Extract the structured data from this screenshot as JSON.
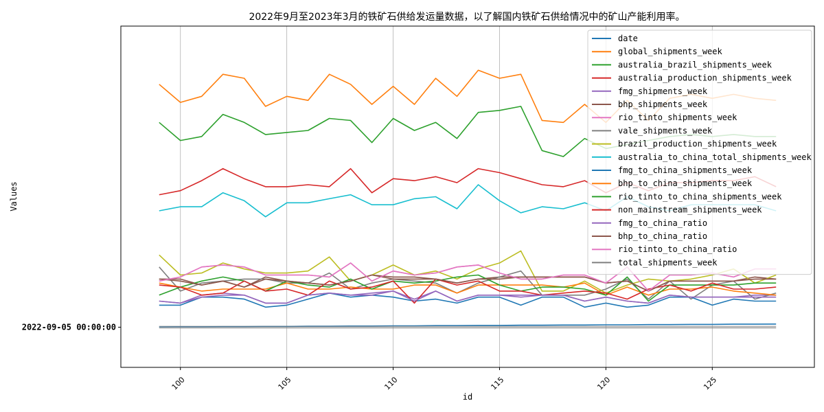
{
  "chart_data": {
    "type": "line",
    "title": "2022年9月至2023年3月的铁矿石供给发运量数据，以了解国内铁矿石供给情况中的矿山产能利用率。",
    "xlabel": "id",
    "ylabel": "Values",
    "xlim": [
      97.2,
      129.8
    ],
    "ylim": [
      -2.0,
      15.0
    ],
    "x_ticks": [
      100,
      105,
      110,
      115,
      120,
      125
    ],
    "y_ticks": [
      {
        "value": 0,
        "label": "2022-09-05 00:00:00"
      }
    ],
    "grid": "x",
    "legend_position": "top-right",
    "x": [
      99,
      100,
      101,
      102,
      103,
      104,
      105,
      106,
      107,
      108,
      109,
      110,
      111,
      112,
      113,
      114,
      115,
      116,
      117,
      118,
      119,
      120,
      121,
      122,
      123,
      124,
      125,
      126,
      127,
      128
    ],
    "series": [
      {
        "name": "date",
        "color": "#1f77b4",
        "values": [
          0.01,
          0.02,
          0.02,
          0.03,
          0.03,
          0.04,
          0.04,
          0.05,
          0.05,
          0.06,
          0.06,
          0.07,
          0.07,
          0.08,
          0.08,
          0.09,
          0.09,
          0.1,
          0.1,
          0.11,
          0.11,
          0.12,
          0.12,
          0.13,
          0.13,
          0.14,
          0.14,
          0.15,
          0.15,
          0.16
        ]
      },
      {
        "name": "global_shipments_week",
        "color": "#ff7f0e",
        "values": [
          12.1,
          11.2,
          11.5,
          12.6,
          12.4,
          11.0,
          11.5,
          11.3,
          12.6,
          12.1,
          11.1,
          12.0,
          11.1,
          12.4,
          11.5,
          12.8,
          12.4,
          12.6,
          10.3,
          10.2,
          11.1,
          10.2,
          11.3,
          10.3,
          11.4,
          11.6,
          11.4,
          11.6,
          11.4,
          11.3
        ]
      },
      {
        "name": "australia_brazil_shipments_week",
        "color": "#2ca02c",
        "values": [
          10.2,
          9.3,
          9.5,
          10.6,
          10.2,
          9.6,
          9.7,
          9.8,
          10.4,
          10.3,
          9.2,
          10.4,
          9.8,
          10.2,
          9.4,
          10.7,
          10.8,
          11.0,
          8.8,
          8.5,
          9.4,
          8.9,
          9.1,
          9.3,
          9.5,
          9.6,
          9.5,
          9.6,
          9.5,
          9.5
        ]
      },
      {
        "name": "australia_production_shipments_week",
        "color": "#d62728",
        "values": [
          6.6,
          6.8,
          7.3,
          7.9,
          7.4,
          7.0,
          7.0,
          7.1,
          7.0,
          7.9,
          6.7,
          7.4,
          7.3,
          7.5,
          7.2,
          7.9,
          7.7,
          7.4,
          7.1,
          7.0,
          7.3,
          6.7,
          7.2,
          6.8,
          7.2,
          7.2,
          7.3,
          7.3,
          7.5,
          7.0
        ]
      },
      {
        "name": "fmg_shipments_week",
        "color": "#9467bd",
        "values": [
          1.3,
          1.2,
          1.6,
          1.7,
          1.6,
          1.2,
          1.2,
          1.6,
          1.7,
          1.6,
          1.7,
          1.8,
          1.4,
          1.8,
          1.3,
          1.6,
          1.6,
          1.6,
          1.6,
          1.6,
          1.3,
          1.5,
          1.3,
          1.2,
          1.6,
          1.5,
          1.5,
          1.5,
          1.6,
          1.6
        ]
      },
      {
        "name": "bhp_shipments_week",
        "color": "#8c564b",
        "values": [
          2.4,
          2.4,
          2.1,
          2.3,
          2.0,
          2.5,
          2.3,
          2.2,
          2.1,
          2.3,
          2.6,
          2.5,
          2.5,
          2.4,
          2.2,
          2.4,
          2.5,
          2.5,
          2.5,
          2.5,
          2.5,
          2.2,
          2.3,
          1.8,
          2.3,
          2.3,
          2.3,
          2.3,
          2.5,
          2.4
        ]
      },
      {
        "name": "rio_tinto_shipments_week",
        "color": "#e377c2",
        "values": [
          2.3,
          2.5,
          3.0,
          3.1,
          3.0,
          2.6,
          2.6,
          2.6,
          2.5,
          3.2,
          2.3,
          2.8,
          2.6,
          2.7,
          3.0,
          3.1,
          2.7,
          2.4,
          2.4,
          2.6,
          2.6,
          2.2,
          3.0,
          1.8,
          2.6,
          2.6,
          2.7,
          2.5,
          2.9,
          2.9
        ]
      },
      {
        "name": "vale_shipments_week",
        "color": "#7f7f7f",
        "values": [
          3.0,
          1.8,
          2.2,
          2.3,
          2.4,
          2.4,
          2.2,
          2.2,
          2.7,
          1.9,
          2.2,
          2.4,
          2.3,
          2.2,
          1.7,
          2.2,
          2.5,
          2.8,
          1.6,
          1.6,
          1.6,
          1.9,
          2.4,
          1.4,
          2.3,
          1.4,
          2.1,
          2.3,
          1.4,
          1.7
        ]
      },
      {
        "name": "brazil_production_shipments_week",
        "color": "#bcbd22",
        "values": [
          3.6,
          2.6,
          2.7,
          3.2,
          2.9,
          2.7,
          2.7,
          2.8,
          3.5,
          2.3,
          2.6,
          3.1,
          2.6,
          2.8,
          2.4,
          2.9,
          3.2,
          3.8,
          1.8,
          1.8,
          2.3,
          1.7,
          2.1,
          2.4,
          2.3,
          2.4,
          2.6,
          2.9,
          2.2,
          2.6
        ]
      },
      {
        "name": "australia_to_china_total_shipments_week",
        "color": "#17becf",
        "values": [
          5.8,
          6.0,
          6.0,
          6.7,
          6.3,
          5.5,
          6.2,
          6.2,
          6.4,
          6.6,
          6.1,
          6.1,
          6.4,
          6.5,
          5.9,
          7.1,
          6.3,
          5.7,
          6.0,
          5.9,
          6.2,
          5.8,
          6.5,
          6.0,
          5.8,
          6.1,
          6.1,
          6.1,
          6.1,
          5.8
        ]
      },
      {
        "name": "fmg_to_china_shipments_week",
        "color": "#1f77b4",
        "values": [
          1.1,
          1.1,
          1.5,
          1.5,
          1.4,
          1.0,
          1.1,
          1.4,
          1.7,
          1.5,
          1.6,
          1.5,
          1.3,
          1.4,
          1.2,
          1.5,
          1.5,
          1.1,
          1.5,
          1.5,
          1.0,
          1.2,
          1.0,
          1.1,
          1.5,
          1.5,
          1.1,
          1.4,
          1.3,
          1.3
        ]
      },
      {
        "name": "bhp_to_china_shipments_week",
        "color": "#ff7f0e",
        "values": [
          2.2,
          2.0,
          1.8,
          1.9,
          1.9,
          1.9,
          2.2,
          1.9,
          1.9,
          2.0,
          1.9,
          1.9,
          2.1,
          2.1,
          1.7,
          2.1,
          2.1,
          2.1,
          2.1,
          2.0,
          2.2,
          1.6,
          2.0,
          1.6,
          1.9,
          1.9,
          2.0,
          1.8,
          1.7,
          1.6
        ]
      },
      {
        "name": "rio_tinto_to_china_shipments_week",
        "color": "#2ca02c",
        "values": [
          1.6,
          2.0,
          2.3,
          2.5,
          2.3,
          1.8,
          2.3,
          2.1,
          2.0,
          2.4,
          1.9,
          2.3,
          2.2,
          2.3,
          2.5,
          2.6,
          2.1,
          1.8,
          2.0,
          2.0,
          1.9,
          1.6,
          2.5,
          1.3,
          2.1,
          2.1,
          2.1,
          2.1,
          2.2,
          2.2
        ]
      },
      {
        "name": "non_mainstream_shipments_week",
        "color": "#d62728",
        "values": [
          2.1,
          2.0,
          1.6,
          1.7,
          2.3,
          1.8,
          1.9,
          1.6,
          2.3,
          1.9,
          2.0,
          2.3,
          1.2,
          2.4,
          2.1,
          2.3,
          1.8,
          1.8,
          1.6,
          1.7,
          1.8,
          1.7,
          1.4,
          1.9,
          2.1,
          1.8,
          2.2,
          1.9,
          1.9,
          2.0
        ]
      },
      {
        "name": "fmg_to_china_ratio",
        "color": "#9467bd",
        "values": [
          1.3,
          1.2,
          1.5,
          1.6,
          1.6,
          1.2,
          1.2,
          1.6,
          1.7,
          1.6,
          1.6,
          1.8,
          1.3,
          1.8,
          1.3,
          1.6,
          1.6,
          1.5,
          1.6,
          1.6,
          1.3,
          1.5,
          1.3,
          1.2,
          1.6,
          1.5,
          1.5,
          1.5,
          1.5,
          1.5
        ]
      },
      {
        "name": "bhp_to_china_ratio",
        "color": "#8c564b",
        "values": [
          2.4,
          2.3,
          2.1,
          2.3,
          2.0,
          2.4,
          2.3,
          2.2,
          2.1,
          2.3,
          2.6,
          2.4,
          2.4,
          2.4,
          2.2,
          2.4,
          2.4,
          2.5,
          2.5,
          2.5,
          2.5,
          2.2,
          2.3,
          1.8,
          2.3,
          2.3,
          2.3,
          2.3,
          2.4,
          2.4
        ]
      },
      {
        "name": "rio_tinto_to_china_ratio",
        "color": "#e377c2",
        "values": [
          2.3,
          2.5,
          3.0,
          3.1,
          3.0,
          2.6,
          2.6,
          2.6,
          2.5,
          3.2,
          2.3,
          2.8,
          2.6,
          2.7,
          3.0,
          3.1,
          2.7,
          2.4,
          2.4,
          2.6,
          2.6,
          2.2,
          3.0,
          1.8,
          2.6,
          2.6,
          2.7,
          2.5,
          2.9,
          2.9
        ]
      },
      {
        "name": "total_shipments_week",
        "color": "#7f7f7f",
        "values": [
          0.0,
          0.0,
          0.0,
          0.0,
          0.0,
          0.0,
          0.0,
          0.0,
          0.0,
          0.0,
          0.0,
          0.0,
          0.0,
          0.0,
          0.0,
          0.0,
          0.0,
          0.0,
          0.0,
          0.0,
          0.0,
          0.0,
          0.0,
          0.0,
          0.0,
          0.0,
          0.0,
          0.0,
          0.0,
          0.0
        ]
      }
    ]
  }
}
